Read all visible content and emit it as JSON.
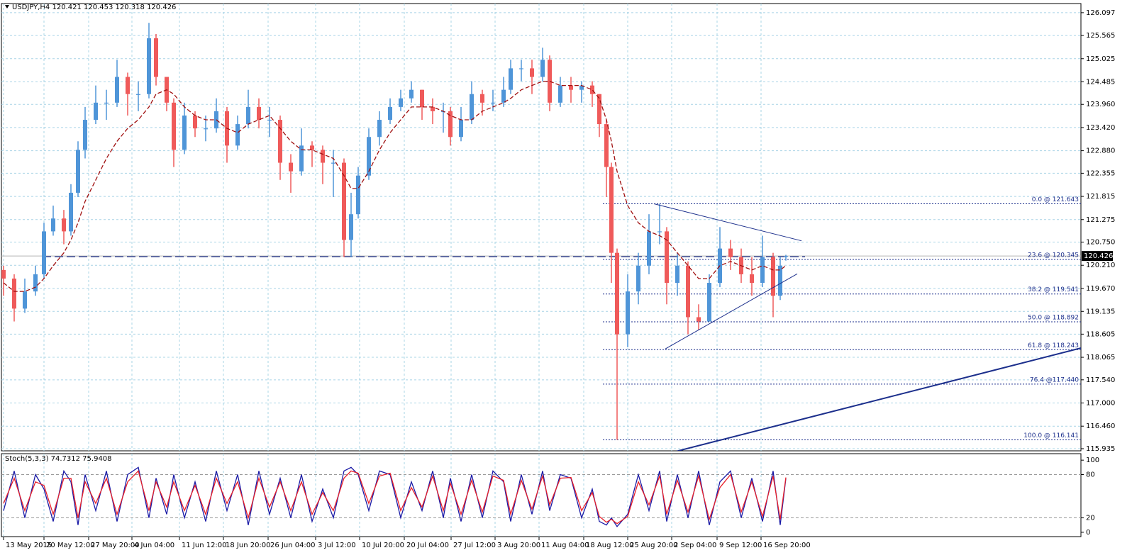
{
  "chart_data": [
    {
      "type": "candlestick",
      "title": "USDJPY,H4  120.421 120.453 120.318 120.426",
      "up_color": "#4f95d8",
      "down_color": "#ef5a5a",
      "x": [
        0,
        7.5,
        15,
        22.5,
        28.5,
        35,
        42.5,
        47.5,
        52.5,
        57.5,
        65,
        72.5,
        80,
        87.5,
        95,
        102.5,
        107.5,
        115,
        120,
        127.5,
        135,
        142.5,
        150,
        157.5,
        165,
        172.5,
        180,
        187.5,
        195,
        202.5,
        210,
        217.5,
        225,
        232.5,
        240,
        245,
        250,
        257.5,
        265,
        272.5,
        280,
        287.5,
        295,
        302.5,
        310,
        315,
        322.5,
        330,
        337.5,
        345,
        352.5,
        357.5,
        365,
        372.5,
        380,
        385,
        392.5,
        400,
        407.5,
        415,
        420,
        425,
        428.5,
        432.5,
        440,
        447.5,
        455,
        462.5,
        467.5,
        475,
        482.5,
        490,
        497.5,
        505,
        512.5,
        520,
        527.5,
        535,
        542.5,
        547.5,
        551.5
      ],
      "open": [
        120.1,
        119.9,
        119.2,
        119.6,
        120.0,
        121.0,
        121.3,
        121.0,
        121.9,
        122.9,
        123.6,
        124.0,
        124.0,
        124.6,
        124.2,
        124.2,
        125.5,
        124.6,
        124.0,
        122.9,
        123.7,
        123.4,
        123.4,
        123.8,
        123.0,
        123.5,
        123.9,
        123.6,
        123.6,
        122.6,
        122.4,
        123.0,
        122.9,
        122.6,
        122.6,
        120.8,
        121.4,
        122.3,
        123.2,
        123.6,
        123.9,
        124.1,
        124.3,
        123.9,
        123.8,
        123.8,
        123.2,
        123.6,
        124.2,
        124.0,
        124.0,
        124.3,
        124.8,
        124.8,
        124.6,
        125.0,
        124.0,
        124.4,
        124.3,
        124.4,
        124.2,
        123.5,
        122.5,
        120.5,
        118.6,
        119.6,
        120.2,
        121.0,
        121.0,
        119.8,
        120.2,
        119.0,
        118.9,
        119.8,
        120.6,
        120.4,
        120.0,
        119.8,
        120.4,
        119.5,
        120.421
      ],
      "high": [
        120.2,
        120.0,
        119.9,
        120.2,
        121.2,
        121.6,
        121.5,
        122.1,
        123.1,
        123.9,
        124.4,
        124.3,
        125.0,
        124.7,
        124.5,
        125.86,
        125.6,
        124.6,
        124.1,
        124.0,
        123.8,
        123.7,
        124.1,
        123.9,
        123.7,
        124.3,
        124.1,
        123.9,
        123.7,
        122.8,
        123.4,
        123.1,
        123.0,
        122.9,
        122.7,
        121.9,
        122.5,
        123.4,
        123.8,
        124.1,
        124.3,
        124.5,
        124.3,
        124.1,
        124.0,
        123.9,
        123.9,
        124.5,
        124.3,
        124.3,
        124.6,
        125.0,
        125.0,
        125.0,
        125.28,
        125.1,
        124.6,
        124.6,
        124.5,
        124.5,
        124.2,
        123.6,
        122.6,
        120.6,
        120.0,
        120.5,
        121.4,
        121.643,
        121.1,
        120.5,
        120.3,
        119.3,
        120.0,
        121.1,
        120.8,
        120.6,
        120.4,
        120.9,
        120.5,
        120.4,
        120.453
      ],
      "low": [
        119.5,
        118.9,
        119.1,
        119.5,
        119.9,
        120.9,
        120.7,
        120.9,
        121.8,
        122.7,
        123.5,
        123.6,
        123.9,
        123.7,
        123.8,
        124.1,
        124.4,
        123.8,
        122.5,
        122.8,
        123.2,
        123.1,
        123.3,
        122.6,
        122.9,
        123.4,
        123.4,
        123.2,
        122.2,
        121.9,
        122.3,
        122.5,
        122.1,
        121.8,
        120.4,
        120.4,
        121.3,
        122.2,
        123.0,
        123.5,
        123.8,
        124.0,
        123.6,
        123.5,
        123.3,
        123.0,
        123.1,
        123.5,
        123.7,
        123.8,
        123.9,
        124.2,
        124.5,
        124.2,
        124.5,
        123.8,
        123.9,
        124.0,
        124.0,
        123.9,
        123.2,
        121.8,
        119.8,
        116.141,
        118.3,
        119.3,
        120.0,
        120.7,
        119.3,
        119.5,
        118.6,
        118.7,
        118.9,
        119.7,
        120.1,
        119.8,
        119.5,
        119.7,
        119.0,
        119.4,
        120.318
      ],
      "close": [
        119.9,
        119.2,
        119.6,
        120.0,
        121.0,
        121.3,
        121.0,
        121.9,
        122.9,
        123.6,
        124.0,
        124.0,
        124.6,
        124.2,
        124.2,
        125.5,
        124.6,
        124.0,
        122.9,
        123.7,
        123.4,
        123.4,
        123.8,
        123.0,
        123.5,
        123.9,
        123.6,
        123.6,
        122.6,
        122.4,
        123.0,
        122.9,
        122.6,
        122.6,
        120.8,
        121.4,
        122.3,
        123.2,
        123.6,
        123.9,
        124.1,
        124.3,
        123.9,
        123.8,
        123.8,
        123.2,
        123.6,
        124.2,
        124.0,
        124.0,
        124.3,
        124.8,
        124.8,
        124.6,
        125.0,
        124.0,
        124.4,
        124.3,
        124.4,
        124.2,
        123.5,
        122.5,
        120.5,
        118.6,
        119.6,
        120.2,
        121.0,
        121.0,
        119.8,
        120.2,
        119.0,
        118.9,
        119.8,
        120.6,
        120.4,
        120.0,
        119.8,
        120.4,
        119.5,
        120.2,
        120.426
      ],
      "ma": {
        "color": "#a01010",
        "values": [
          119.8,
          119.6,
          119.6,
          119.7,
          119.9,
          120.2,
          120.5,
          120.8,
          121.2,
          121.7,
          122.2,
          122.7,
          123.1,
          123.4,
          123.6,
          123.9,
          124.2,
          124.3,
          124.2,
          123.9,
          123.7,
          123.6,
          123.6,
          123.4,
          123.3,
          123.5,
          123.6,
          123.7,
          123.4,
          123.1,
          122.9,
          122.9,
          122.8,
          122.7,
          122.3,
          122.0,
          122.0,
          122.4,
          122.9,
          123.3,
          123.6,
          123.9,
          123.9,
          123.9,
          123.8,
          123.7,
          123.6,
          123.6,
          123.8,
          123.9,
          124.0,
          124.1,
          124.3,
          124.4,
          124.5,
          124.5,
          124.4,
          124.4,
          124.4,
          124.3,
          124.1,
          123.6,
          123.1,
          122.4,
          121.6,
          121.2,
          121.0,
          120.9,
          120.8,
          120.5,
          120.2,
          119.9,
          119.9,
          120.2,
          120.3,
          120.2,
          120.1,
          120.2,
          120.1,
          120.1,
          120.2
        ]
      },
      "xlim": [
        0,
        760
      ],
      "ylim": [
        115.885,
        126.31
      ],
      "yticks": [
        126.097,
        125.565,
        125.025,
        124.485,
        {
          "value": 123.96,
          "label": "123.960"
        },
        {
          "value": 123.42,
          "label": "123.420"
        },
        {
          "value": 122.88,
          "label": "122.880"
        },
        122.355,
        121.815,
        121.275,
        {
          "value": 120.75,
          "label": "120.750"
        },
        {
          "value": 120.21,
          "label": "120.210"
        },
        {
          "value": 119.67,
          "label": "119.670"
        },
        119.135,
        118.605,
        118.065,
        {
          "value": 117.54,
          "label": "117.540"
        },
        {
          "value": 117,
          "label": "117.000"
        },
        {
          "value": 116.46,
          "label": "116.460"
        },
        115.935
      ],
      "xticks": [
        {
          "value": 0,
          "label": "13 May 2015"
        },
        {
          "value": 28.5,
          "label": "20 May 12:00"
        },
        {
          "value": 60,
          "label": "27 May 20:00"
        },
        {
          "value": 90.5,
          "label": "4 Jun 04:00"
        },
        {
          "value": 124,
          "label": "11 Jun 12:00"
        },
        {
          "value": 155,
          "label": "18 Jun 20:00"
        },
        {
          "value": 186.5,
          "label": "26 Jun 04:00"
        },
        {
          "value": 220,
          "label": "3 Jul 12:00"
        },
        {
          "value": 251,
          "label": "10 Jul 20:00"
        },
        {
          "value": 282.5,
          "label": "20 Jul 04:00"
        },
        {
          "value": 315.5,
          "label": "27 Jul 12:00"
        },
        {
          "value": 346.5,
          "label": "3 Aug 20:00"
        },
        {
          "value": 377.5,
          "label": "11 Aug 04:00"
        },
        {
          "value": 409,
          "label": "18 Aug 12:00"
        },
        {
          "value": 440,
          "label": "25 Aug 20:00"
        },
        {
          "value": 471,
          "label": "2 Sep 04:00"
        },
        {
          "value": 503,
          "label": "9 Sep 12:00"
        },
        {
          "value": 534,
          "label": "16 Sep 20:00"
        }
      ],
      "grid": true,
      "current_price": 120.426,
      "hlines": [
        {
          "value": 120.41,
          "x": [
            27.5,
            565
          ],
          "color": "#1c2f8c"
        }
      ],
      "trendlines": [
        {
          "x": [
            458.5,
            562.5
          ],
          "y": [
            121.643,
            120.78
          ],
          "color": "#1c2f8c"
        },
        {
          "x": [
            466.5,
            559.5
          ],
          "y": [
            118.26,
            120.01
          ],
          "color": "#1c2f8c"
        },
        {
          "x": [
            475,
            759.5
          ],
          "y": [
            115.88,
            118.28
          ],
          "color": "#1c2f8c"
        }
      ],
      "fib": {
        "x_start": 422.5,
        "color": "#1c2f8c",
        "levels": [
          {
            "value": 121.643,
            "label": "0.0 @ 121.643"
          },
          {
            "value": 120.345,
            "label": "23.6 @ 120.345"
          },
          {
            "value": 119.541,
            "label": "38.2 @ 119.541"
          },
          {
            "value": 118.892,
            "label": "50.0 @ 118.892"
          },
          {
            "value": 118.243,
            "label": "61.8 @ 118.243"
          },
          {
            "value": 117.44,
            "label": "76.4 @117.440"
          },
          {
            "value": 116.141,
            "label": "100.0 @ 116.141"
          }
        ]
      }
    },
    {
      "type": "line",
      "title": "Stoch(5,3,3) 74.7312 75.9408",
      "x": [
        0,
        7.5,
        15,
        22.5,
        28.5,
        35,
        42.5,
        47.5,
        52.5,
        57.5,
        65,
        72.5,
        80,
        87.5,
        95,
        102.5,
        107.5,
        115,
        120,
        127.5,
        135,
        142.5,
        150,
        157.5,
        165,
        172.5,
        180,
        187.5,
        195,
        202.5,
        210,
        217.5,
        225,
        232.5,
        240,
        245,
        250,
        257.5,
        265,
        272.5,
        280,
        287.5,
        295,
        302.5,
        310,
        315,
        322.5,
        330,
        337.5,
        345,
        352.5,
        357.5,
        365,
        372.5,
        380,
        385,
        392.5,
        400,
        407.5,
        415,
        420,
        425,
        428.5,
        432.5,
        440,
        447.5,
        455,
        462.5,
        467.5,
        475,
        482.5,
        490,
        497.5,
        505,
        512.5,
        520,
        527.5,
        535,
        542.5,
        547.5,
        551.5
      ],
      "series": [
        {
          "color": "#1a1aa6",
          "values": [
            30,
            85,
            20,
            80,
            60,
            15,
            85,
            70,
            10,
            80,
            30,
            85,
            15,
            80,
            90,
            20,
            75,
            25,
            80,
            20,
            70,
            15,
            85,
            30,
            80,
            10,
            85,
            25,
            75,
            20,
            80,
            15,
            60,
            20,
            85,
            90,
            80,
            30,
            85,
            80,
            20,
            70,
            30,
            85,
            20,
            75,
            15,
            80,
            20,
            85,
            70,
            15,
            80,
            25,
            85,
            30,
            80,
            75,
            20,
            60,
            15,
            10,
            20,
            8,
            25,
            80,
            30,
            85,
            15,
            80,
            20,
            85,
            10,
            70,
            85,
            20,
            75,
            15,
            85,
            10,
            74.7312
          ]
        },
        {
          "color": "#e8202a",
          "values": [
            40,
            75,
            30,
            70,
            65,
            25,
            75,
            75,
            20,
            70,
            40,
            75,
            25,
            70,
            85,
            30,
            70,
            35,
            70,
            30,
            65,
            25,
            75,
            40,
            70,
            20,
            75,
            35,
            70,
            30,
            70,
            25,
            55,
            30,
            75,
            85,
            82,
            40,
            78,
            82,
            30,
            62,
            35,
            78,
            30,
            68,
            25,
            72,
            28,
            78,
            72,
            25,
            72,
            32,
            78,
            38,
            75,
            76,
            30,
            55,
            22,
            14,
            18,
            12,
            22,
            70,
            38,
            78,
            25,
            72,
            28,
            78,
            18,
            62,
            80,
            28,
            70,
            22,
            78,
            18,
            75.9408
          ]
        }
      ],
      "xlim": [
        0,
        760
      ],
      "ylim": [
        -6,
        109
      ],
      "yticks": [
        100,
        80,
        20,
        0
      ],
      "levels": [
        80,
        20
      ]
    }
  ]
}
